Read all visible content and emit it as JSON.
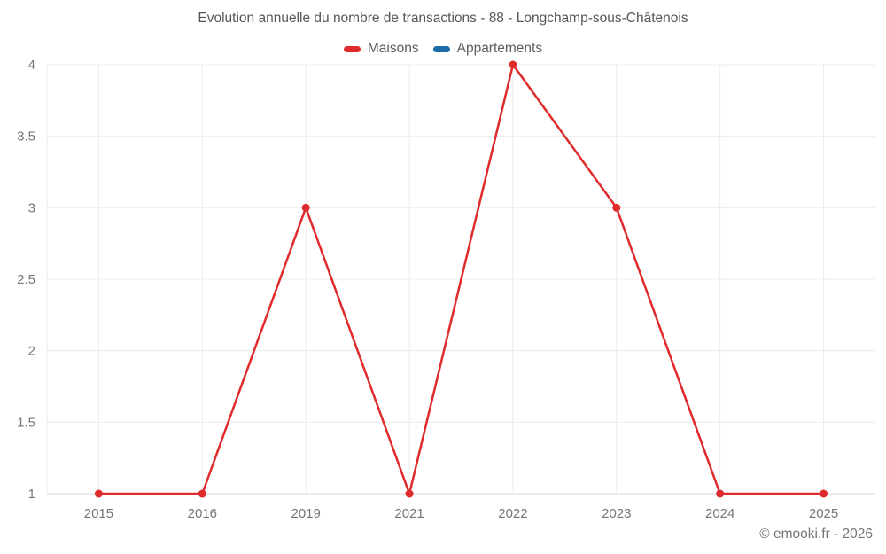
{
  "footer": {
    "copyright": "© emooki.fr - 2026"
  },
  "colors": {
    "background": "#ffffff",
    "grid": "#ececec",
    "axis_line": "#d9d9d9",
    "tick_label": "#757575",
    "title": "#565656",
    "legend_label": "#5c5c5c"
  },
  "chart_data": {
    "type": "line",
    "title": "Evolution annuelle du nombre de transactions - 88 - Longchamp-sous-Châtenois",
    "categories": [
      "2015",
      "2016",
      "2019",
      "2021",
      "2022",
      "2023",
      "2024",
      "2025"
    ],
    "series": [
      {
        "name": "Maisons",
        "color": "#df2b2b",
        "values": [
          1,
          1,
          3,
          1,
          4,
          3,
          1,
          1
        ]
      },
      {
        "name": "Appartements",
        "color": "#1b6ca8",
        "values": []
      }
    ],
    "xlabel": "",
    "ylabel": "",
    "ylim": [
      1,
      4
    ],
    "y_ticks": [
      1,
      1.5,
      2,
      2.5,
      3,
      3.5,
      4
    ],
    "grid": true,
    "legend_position": "top",
    "marker": "circle"
  }
}
